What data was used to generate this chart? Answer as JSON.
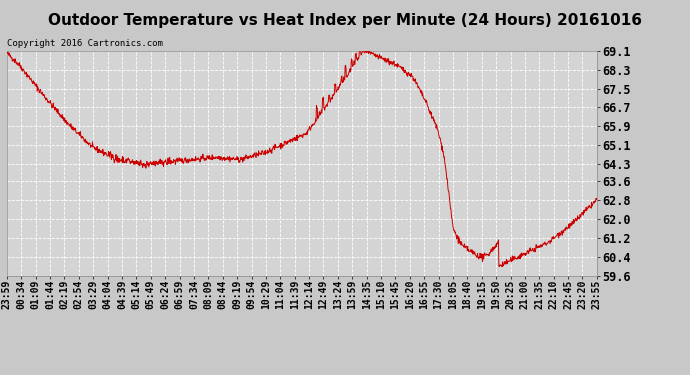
{
  "title": "Outdoor Temperature vs Heat Index per Minute (24 Hours) 20161016",
  "copyright": "Copyright 2016 Cartronics.com",
  "ylabel_right_ticks": [
    59.6,
    60.4,
    61.2,
    62.0,
    62.8,
    63.6,
    64.3,
    65.1,
    65.9,
    66.7,
    67.5,
    68.3,
    69.1
  ],
  "ymin": 59.6,
  "ymax": 69.1,
  "legend_heat_index_color": "#0000cc",
  "legend_temp_color": "#cc0000",
  "line_color": "#cc0000",
  "background_color": "#c8c8c8",
  "plot_bg_color": "#d4d4d4",
  "grid_color": "#ffffff",
  "title_fontsize": 11,
  "tick_fontsize": 7,
  "x_tick_labels": [
    "23:59",
    "00:34",
    "01:09",
    "01:44",
    "02:19",
    "02:54",
    "03:29",
    "04:04",
    "04:39",
    "05:14",
    "05:49",
    "06:24",
    "06:59",
    "07:34",
    "08:09",
    "08:44",
    "09:19",
    "09:54",
    "10:29",
    "11:04",
    "11:39",
    "12:14",
    "12:49",
    "13:24",
    "13:59",
    "14:35",
    "15:10",
    "15:45",
    "16:20",
    "16:55",
    "17:30",
    "18:05",
    "18:40",
    "19:15",
    "19:50",
    "20:25",
    "21:00",
    "21:35",
    "22:10",
    "22:45",
    "23:20",
    "23:55"
  ],
  "n_points": 1440,
  "keypoints_t": [
    0,
    30,
    90,
    150,
    210,
    270,
    330,
    390,
    450,
    510,
    570,
    630,
    680,
    730,
    780,
    820,
    850,
    870,
    910,
    950,
    990,
    1020,
    1050,
    1065,
    1075,
    1085,
    1090,
    1100,
    1110,
    1130,
    1160,
    1200,
    1260,
    1320,
    1380,
    1439
  ],
  "keypoints_v": [
    69.0,
    68.5,
    67.2,
    66.0,
    65.0,
    64.5,
    64.3,
    64.4,
    64.5,
    64.6,
    64.5,
    64.8,
    65.2,
    65.6,
    66.8,
    67.8,
    68.6,
    69.1,
    68.8,
    68.5,
    68.0,
    67.0,
    65.8,
    64.8,
    63.5,
    62.0,
    61.5,
    61.0,
    60.6,
    60.1,
    59.65,
    60.0,
    60.5,
    61.0,
    61.8,
    62.8
  ]
}
